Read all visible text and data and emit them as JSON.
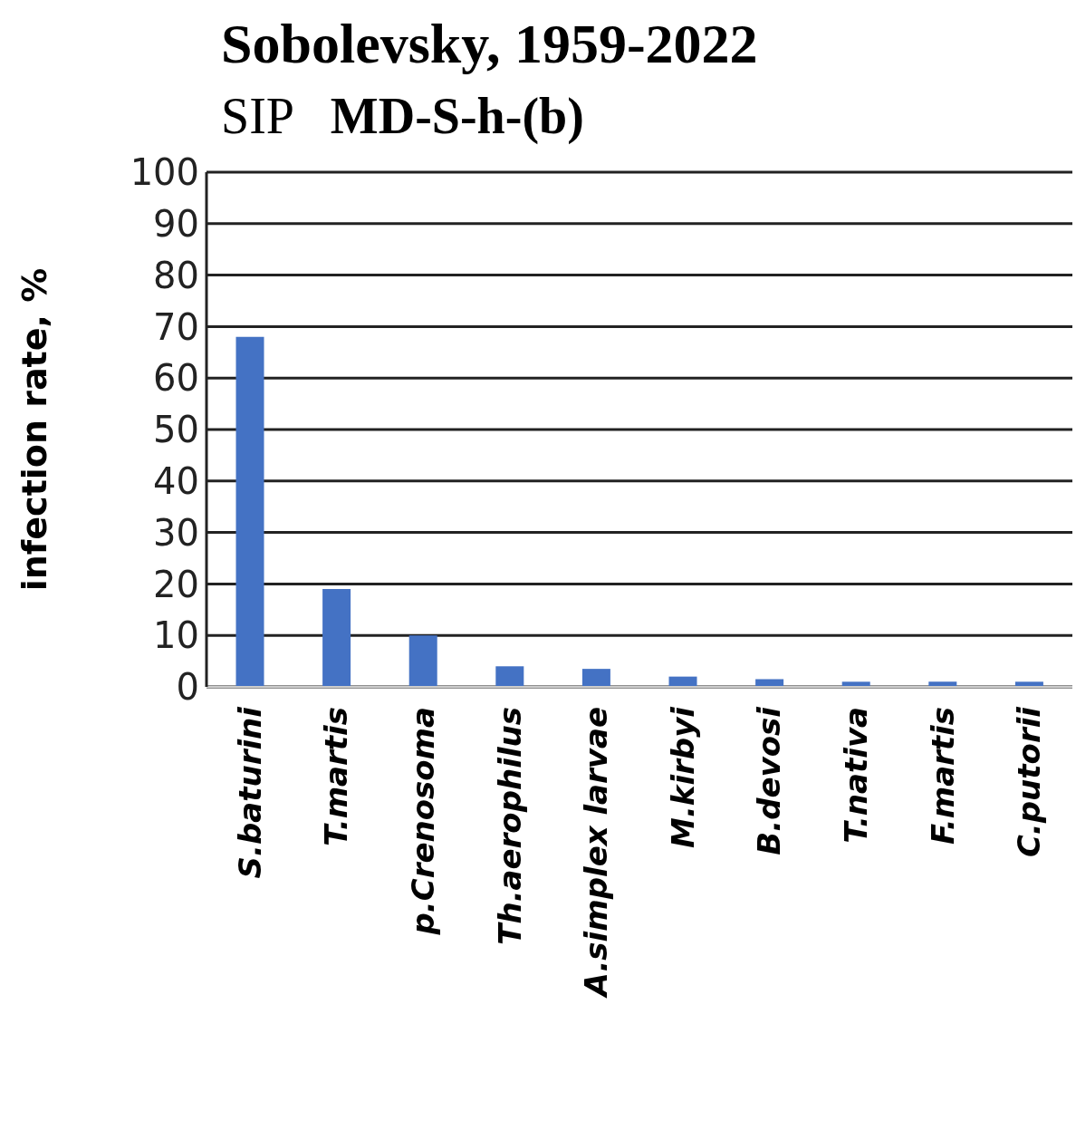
{
  "chart_data": {
    "type": "bar",
    "title": "Sobolevsky, 1959-2022",
    "subtitle": "SIP   MD-S-h-(b)",
    "ylabel": "infection rate, %",
    "categories": [
      "S.baturini",
      "T.martis",
      "p.Crenosoma",
      "Th.aerophilus",
      "A.simplex larvae",
      "M.kirbyi",
      "B.devosi",
      "T.nativa",
      "F.martis",
      "C.putorii"
    ],
    "values": [
      68,
      19,
      10,
      4,
      3.5,
      2,
      1.5,
      1,
      1,
      1
    ],
    "color": "#4472c4",
    "ylim": [
      0,
      100
    ],
    "yticks": [
      0,
      10,
      20,
      30,
      40,
      50,
      60,
      70,
      80,
      90,
      100
    ],
    "grid": "y",
    "legend": false
  }
}
